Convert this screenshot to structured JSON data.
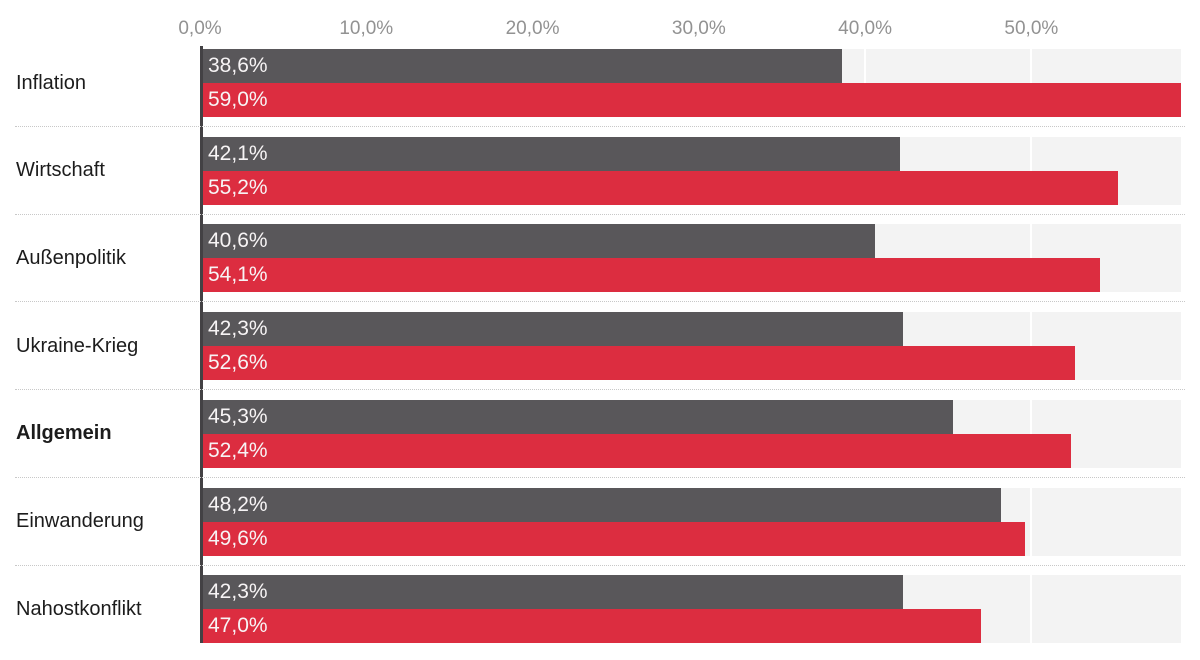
{
  "chart_data": {
    "type": "bar",
    "orientation": "horizontal",
    "categories": [
      "Inflation",
      "Wirtschaft",
      "Außenpolitik",
      "Ukraine-Krieg",
      "Allgemein",
      "Einwanderung",
      "Nahostkonflikt"
    ],
    "highlighted_category": "Allgemein",
    "series": [
      {
        "name": "series-dark-gray",
        "color": "#59575a",
        "values": [
          38.6,
          42.1,
          40.6,
          42.3,
          45.3,
          48.2,
          42.3
        ],
        "value_labels": [
          "38,6%",
          "42,1%",
          "40,6%",
          "42,3%",
          "45,3%",
          "48,2%",
          "42,3%"
        ]
      },
      {
        "name": "series-red",
        "color": "#dc2d40",
        "values": [
          59.0,
          55.2,
          54.1,
          52.6,
          52.4,
          49.6,
          47.0
        ],
        "value_labels": [
          "59,0%",
          "55,2%",
          "54,1%",
          "52,6%",
          "52,4%",
          "49,6%",
          "47,0%"
        ]
      }
    ],
    "x_axis": {
      "position": "top",
      "min": 0,
      "max": 59,
      "tick_values": [
        0,
        10,
        20,
        30,
        40,
        50
      ],
      "tick_labels": [
        "0,0%",
        "10,0%",
        "20,0%",
        "30,0%",
        "40,0%",
        "50,0%"
      ]
    },
    "grid": {
      "vertical_gridlines": true,
      "gridline_color": "#ffffff"
    },
    "legend": {
      "visible": false
    },
    "colors": {
      "band_background": "#f3f3f3",
      "axis_line": "#434144",
      "tick_text": "#929292",
      "category_text": "#1c1c1c",
      "value_text": "#f7f4f5",
      "separator": "#c8c8c8"
    }
  }
}
